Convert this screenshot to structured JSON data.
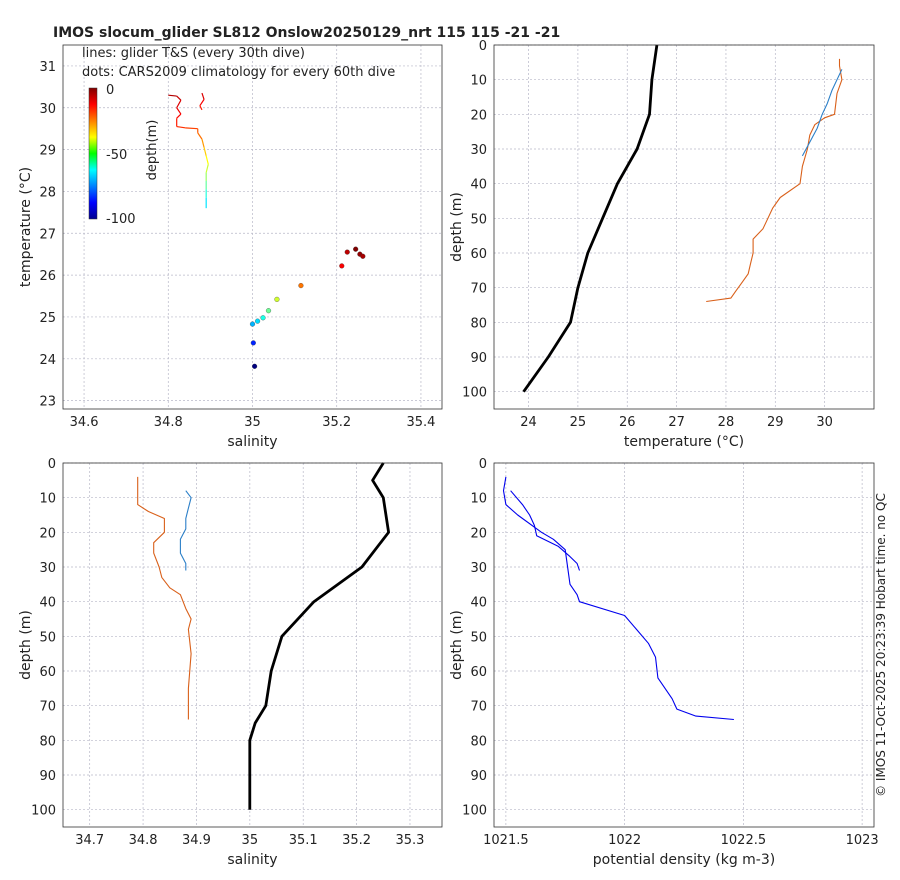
{
  "title": "IMOS slocum_glider SL812 Onslow20250129_nrt 115  115  -21  -21",
  "credit": "© IMOS 11-Oct-2025 20:23:39 Hobart time. no QC",
  "colors": {
    "glider": "#d9601a",
    "blue_profile": "#2b7fc8",
    "mean": "#000000",
    "density": "#0000ee"
  },
  "chart_data": [
    {
      "id": "ts",
      "type": "scatter",
      "xlabel": "salinity",
      "ylabel": "temperature (°C)",
      "xlim": [
        34.55,
        35.45
      ],
      "ylim": [
        22.8,
        31.5
      ],
      "xticks": [
        34.6,
        34.8,
        35,
        35.2,
        35.4
      ],
      "xtick_labels": [
        "34.6",
        "34.8",
        "35",
        "35.2",
        "35.4"
      ],
      "yticks": [
        23,
        24,
        25,
        26,
        27,
        28,
        29,
        30,
        31
      ],
      "ytick_labels": [
        "23",
        "24",
        "25",
        "26",
        "27",
        "28",
        "29",
        "30",
        "31"
      ],
      "legend_lines": [
        "lines: glider T&S (every 30th dive)",
        "dots: CARS2009 climatology for every 60th dive"
      ],
      "colorbar": {
        "label": "depth(m)",
        "min": -100,
        "max": 0,
        "tick_values": [
          0,
          -50,
          -100
        ],
        "tick_labels": [
          "0",
          "-50",
          "-100"
        ]
      },
      "glider_line": [
        {
          "s": 34.8,
          "t": 30.3,
          "d": -4
        },
        {
          "s": 34.82,
          "t": 30.28,
          "d": -6
        },
        {
          "s": 34.83,
          "t": 30.18,
          "d": -8
        },
        {
          "s": 34.82,
          "t": 30.0,
          "d": -10
        },
        {
          "s": 34.83,
          "t": 29.85,
          "d": -12
        },
        {
          "s": 34.82,
          "t": 29.75,
          "d": -14
        },
        {
          "s": 34.82,
          "t": 29.55,
          "d": -16
        },
        {
          "s": 34.84,
          "t": 29.52,
          "d": -18
        },
        {
          "s": 34.87,
          "t": 29.5,
          "d": -20
        },
        {
          "s": 34.87,
          "t": 29.4,
          "d": -22
        },
        {
          "s": 34.88,
          "t": 29.25,
          "d": -25
        },
        {
          "s": 34.885,
          "t": 29.05,
          "d": -30
        },
        {
          "s": 34.89,
          "t": 28.85,
          "d": -35
        },
        {
          "s": 34.895,
          "t": 28.65,
          "d": -40
        },
        {
          "s": 34.89,
          "t": 28.45,
          "d": -45
        },
        {
          "s": 34.89,
          "t": 28.25,
          "d": -50
        },
        {
          "s": 34.89,
          "t": 28.05,
          "d": -56
        },
        {
          "s": 34.89,
          "t": 27.85,
          "d": -62
        },
        {
          "s": 34.89,
          "t": 27.6,
          "d": -68
        }
      ],
      "glider_line2": [
        {
          "s": 34.88,
          "t": 30.35,
          "d": -8
        },
        {
          "s": 34.885,
          "t": 30.2,
          "d": -10
        },
        {
          "s": 34.875,
          "t": 30.05,
          "d": -14
        },
        {
          "s": 34.88,
          "t": 29.95,
          "d": -16
        }
      ],
      "climatology_dots": [
        {
          "s": 35.245,
          "t": 26.62,
          "d": 0
        },
        {
          "s": 35.255,
          "t": 26.5,
          "d": -2
        },
        {
          "s": 35.262,
          "t": 26.45,
          "d": -4
        },
        {
          "s": 35.225,
          "t": 26.55,
          "d": -6
        },
        {
          "s": 35.212,
          "t": 26.22,
          "d": -12
        },
        {
          "s": 35.115,
          "t": 25.75,
          "d": -24
        },
        {
          "s": 35.058,
          "t": 25.42,
          "d": -42
        },
        {
          "s": 35.038,
          "t": 25.15,
          "d": -52
        },
        {
          "s": 35.025,
          "t": 24.98,
          "d": -60
        },
        {
          "s": 35.012,
          "t": 24.9,
          "d": -66
        },
        {
          "s": 35.0,
          "t": 24.83,
          "d": -70
        },
        {
          "s": 35.002,
          "t": 24.38,
          "d": -84
        },
        {
          "s": 35.005,
          "t": 23.82,
          "d": -100
        }
      ]
    },
    {
      "id": "temp",
      "type": "line",
      "xlabel": "temperature (°C)",
      "ylabel": "depth (m)",
      "xlim": [
        23.3,
        31.0
      ],
      "ylim": [
        0,
        105
      ],
      "y_reversed": true,
      "xticks": [
        24,
        25,
        26,
        27,
        28,
        29,
        30
      ],
      "xtick_labels": [
        "24",
        "25",
        "26",
        "27",
        "28",
        "29",
        "30"
      ],
      "yticks": [
        0,
        10,
        20,
        30,
        40,
        50,
        60,
        70,
        80,
        90,
        100
      ],
      "ytick_labels": [
        "0",
        "10",
        "20",
        "30",
        "40",
        "50",
        "60",
        "70",
        "80",
        "90",
        "100"
      ],
      "series": [
        {
          "name": "climatology",
          "points": [
            [
              26.6,
              0
            ],
            [
              26.5,
              10
            ],
            [
              26.45,
              20
            ],
            [
              26.2,
              30
            ],
            [
              25.8,
              40
            ],
            [
              25.5,
              50
            ],
            [
              25.2,
              60
            ],
            [
              25.0,
              70
            ],
            [
              24.85,
              80
            ],
            [
              24.4,
              90
            ],
            [
              23.9,
              100
            ]
          ]
        },
        {
          "name": "glider_dive_a",
          "points": [
            [
              30.3,
              4
            ],
            [
              30.3,
              6
            ],
            [
              30.35,
              10
            ],
            [
              30.25,
              14
            ],
            [
              30.2,
              20
            ],
            [
              30.0,
              21
            ],
            [
              29.8,
              23
            ],
            [
              29.7,
              26
            ],
            [
              29.65,
              30
            ],
            [
              29.55,
              35
            ],
            [
              29.5,
              40
            ],
            [
              29.1,
              44
            ],
            [
              28.95,
              47
            ],
            [
              28.85,
              50
            ],
            [
              28.75,
              53
            ],
            [
              28.55,
              56
            ],
            [
              28.55,
              60
            ],
            [
              28.5,
              63
            ],
            [
              28.45,
              66
            ],
            [
              28.3,
              69
            ],
            [
              28.2,
              71
            ],
            [
              28.1,
              73
            ],
            [
              27.6,
              74
            ]
          ]
        },
        {
          "name": "glider_dive_b",
          "points": [
            [
              30.35,
              7
            ],
            [
              30.25,
              10
            ],
            [
              30.15,
              13
            ],
            [
              30.05,
              17
            ],
            [
              29.95,
              20
            ],
            [
              29.85,
              24
            ],
            [
              29.7,
              28
            ],
            [
              29.55,
              32
            ]
          ]
        }
      ]
    },
    {
      "id": "sal",
      "type": "line",
      "xlabel": "salinity",
      "ylabel": "depth (m)",
      "xlim": [
        34.65,
        35.36
      ],
      "ylim": [
        0,
        105
      ],
      "y_reversed": true,
      "xticks": [
        34.7,
        34.8,
        34.9,
        35,
        35.1,
        35.2,
        35.3
      ],
      "xtick_labels": [
        "34.7",
        "34.8",
        "34.9",
        "35",
        "35.1",
        "35.2",
        "35.3"
      ],
      "yticks": [
        0,
        10,
        20,
        30,
        40,
        50,
        60,
        70,
        80,
        90,
        100
      ],
      "ytick_labels": [
        "0",
        "10",
        "20",
        "30",
        "40",
        "50",
        "60",
        "70",
        "80",
        "90",
        "100"
      ],
      "series": [
        {
          "name": "climatology",
          "points": [
            [
              35.25,
              0
            ],
            [
              35.23,
              5
            ],
            [
              35.25,
              10
            ],
            [
              35.26,
              20
            ],
            [
              35.21,
              30
            ],
            [
              35.12,
              40
            ],
            [
              35.06,
              50
            ],
            [
              35.04,
              60
            ],
            [
              35.03,
              70
            ],
            [
              35.01,
              75
            ],
            [
              35.0,
              80
            ],
            [
              35.0,
              90
            ],
            [
              35.0,
              100
            ]
          ]
        },
        {
          "name": "glider_dive_a",
          "points": [
            [
              34.79,
              4
            ],
            [
              34.79,
              8
            ],
            [
              34.79,
              12
            ],
            [
              34.81,
              14
            ],
            [
              34.84,
              16
            ],
            [
              34.84,
              20
            ],
            [
              34.82,
              23
            ],
            [
              34.82,
              26
            ],
            [
              34.83,
              30
            ],
            [
              34.835,
              33
            ],
            [
              34.85,
              36
            ],
            [
              34.87,
              38
            ],
            [
              34.88,
              42
            ],
            [
              34.89,
              45
            ],
            [
              34.885,
              48
            ],
            [
              34.89,
              55
            ],
            [
              34.885,
              65
            ],
            [
              34.885,
              70
            ],
            [
              34.885,
              74
            ]
          ]
        },
        {
          "name": "glider_dive_b",
          "points": [
            [
              34.88,
              8
            ],
            [
              34.89,
              10
            ],
            [
              34.885,
              13
            ],
            [
              34.88,
              16
            ],
            [
              34.88,
              19
            ],
            [
              34.87,
              22
            ],
            [
              34.87,
              26
            ],
            [
              34.88,
              29
            ],
            [
              34.88,
              31
            ]
          ]
        }
      ]
    },
    {
      "id": "dens",
      "type": "line",
      "xlabel": "potential density (kg m-3)",
      "ylabel": "depth (m)",
      "xlim": [
        1021.45,
        1023.05
      ],
      "ylim": [
        0,
        105
      ],
      "y_reversed": true,
      "xticks": [
        1021.5,
        1022,
        1022.5,
        1023
      ],
      "xtick_labels": [
        "1021.5",
        "1022",
        "1022.5",
        "1023"
      ],
      "yticks": [
        0,
        10,
        20,
        30,
        40,
        50,
        60,
        70,
        80,
        90,
        100
      ],
      "ytick_labels": [
        "0",
        "10",
        "20",
        "30",
        "40",
        "50",
        "60",
        "70",
        "80",
        "90",
        "100"
      ],
      "series": [
        {
          "name": "glider_dive_a",
          "points": [
            [
              1021.5,
              4
            ],
            [
              1021.49,
              8
            ],
            [
              1021.5,
              12
            ],
            [
              1021.55,
              15
            ],
            [
              1021.65,
              20
            ],
            [
              1021.7,
              22
            ],
            [
              1021.75,
              25
            ],
            [
              1021.76,
              30
            ],
            [
              1021.77,
              35
            ],
            [
              1021.8,
              38
            ],
            [
              1021.81,
              40
            ],
            [
              1022.0,
              44
            ],
            [
              1022.05,
              48
            ],
            [
              1022.1,
              52
            ],
            [
              1022.13,
              56
            ],
            [
              1022.14,
              62
            ],
            [
              1022.2,
              68
            ],
            [
              1022.22,
              71
            ],
            [
              1022.3,
              73
            ],
            [
              1022.46,
              74
            ]
          ]
        },
        {
          "name": "glider_dive_b",
          "points": [
            [
              1021.52,
              8
            ],
            [
              1021.57,
              12
            ],
            [
              1021.6,
              15
            ],
            [
              1021.62,
              18
            ],
            [
              1021.63,
              21
            ],
            [
              1021.72,
              24
            ],
            [
              1021.77,
              27
            ],
            [
              1021.8,
              29
            ],
            [
              1021.81,
              31
            ]
          ]
        }
      ]
    }
  ]
}
